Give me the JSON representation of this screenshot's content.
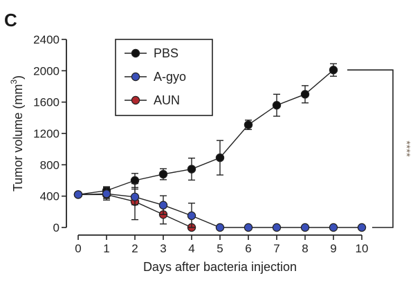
{
  "panel_letter": "C",
  "colors": {
    "PBS": "#111111",
    "A-gyo": "#3a4fb8",
    "AUN": "#b0282e",
    "axis": "#222222",
    "significance": "#7a6a5a"
  },
  "chart_data": {
    "type": "line",
    "xlabel": "Days after bacteria injection",
    "ylabel_main": "Tumor volume (mm",
    "ylabel_sup": "3",
    "ylabel_close": ")",
    "xlim": [
      0,
      10
    ],
    "ylim": [
      0,
      2400
    ],
    "x_ticks": [
      0,
      1,
      2,
      3,
      4,
      5,
      6,
      7,
      8,
      9,
      10
    ],
    "y_ticks": [
      0,
      400,
      800,
      1200,
      1600,
      2000,
      2400
    ],
    "series": [
      {
        "name": "PBS",
        "x": [
          0,
          1,
          2,
          3,
          4,
          5,
          6,
          7,
          8,
          9
        ],
        "y": [
          420,
          470,
          600,
          680,
          745,
          890,
          1310,
          1560,
          1700,
          2010
        ],
        "err": [
          20,
          50,
          90,
          70,
          140,
          220,
          60,
          140,
          110,
          80
        ]
      },
      {
        "name": "A-gyo",
        "x": [
          0,
          1,
          2,
          3,
          4,
          5,
          6,
          7,
          8,
          9,
          10
        ],
        "y": [
          420,
          430,
          390,
          285,
          150,
          0,
          0,
          0,
          0,
          0,
          0
        ],
        "err": [
          20,
          80,
          100,
          120,
          160,
          0,
          0,
          0,
          0,
          0,
          0
        ]
      },
      {
        "name": "AUN",
        "x": [
          0,
          1,
          2,
          3,
          4
        ],
        "y": [
          420,
          420,
          330,
          165,
          0
        ],
        "err": [
          20,
          50,
          230,
          120,
          0
        ]
      }
    ],
    "legend": {
      "placement": "top-left",
      "entries": [
        "PBS",
        "A-gyo",
        "AUN"
      ]
    },
    "significance": {
      "label": "****",
      "from_series": "PBS",
      "to_series": "A-gyo"
    }
  }
}
